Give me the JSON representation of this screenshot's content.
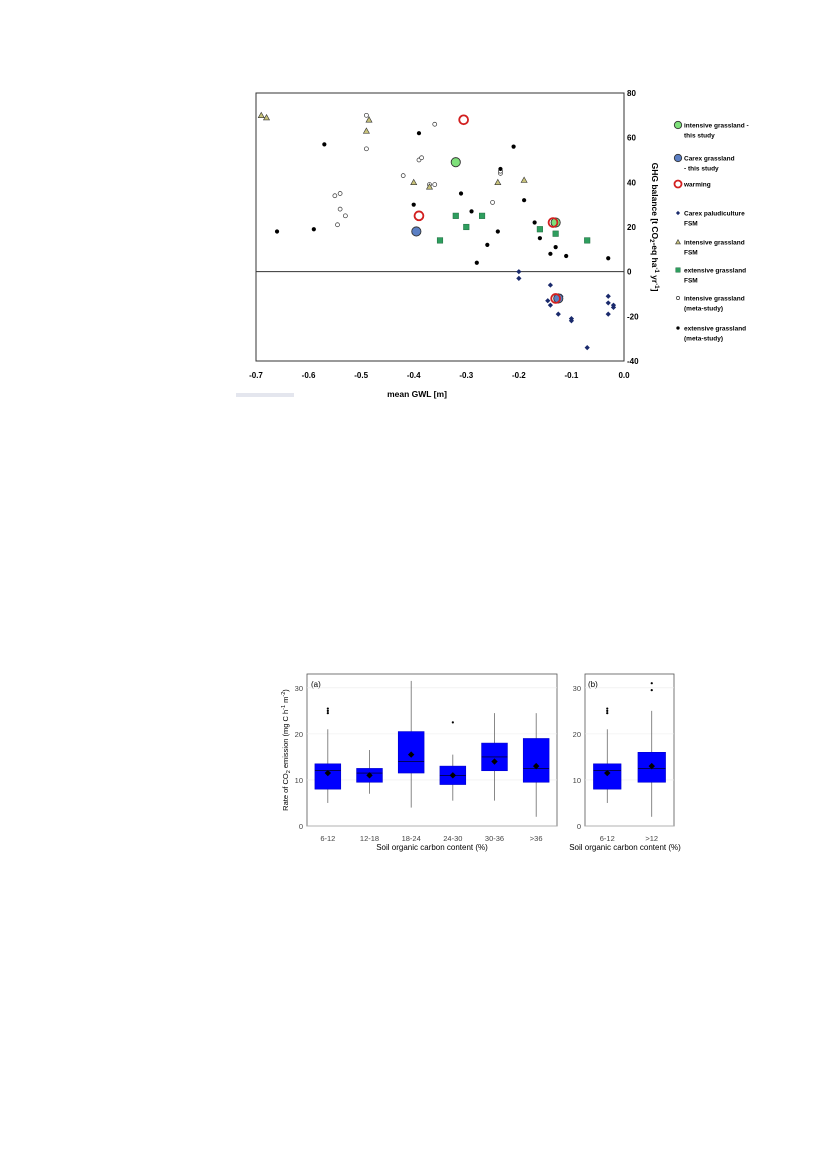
{
  "chart_data": [
    {
      "type": "scatter",
      "title": "",
      "xlabel": "mean GWL [m]",
      "ylabel_parts": [
        "GHG balance [t CO",
        "2",
        "-eq ha",
        "-1",
        " yr",
        "-1",
        "]"
      ],
      "xlim": [
        -0.7,
        0.0
      ],
      "ylim": [
        -40,
        80
      ],
      "xticks": [
        -0.7,
        -0.6,
        -0.5,
        -0.4,
        -0.3,
        -0.2,
        -0.1,
        0.0
      ],
      "xtick_labels": [
        "-0.7",
        "-0.6",
        "-0.5",
        "-0.4",
        "-0.3",
        "-0.2",
        "-0.1",
        "0.0"
      ],
      "yticks": [
        -40,
        -20,
        0,
        20,
        40,
        60,
        80
      ],
      "ytick_labels": [
        "-40",
        "-20",
        "0",
        "20",
        "40",
        "60",
        "80"
      ],
      "zero_line": true,
      "legend_position": "right",
      "series": [
        {
          "name": "intensive grassland - this study",
          "legend_lines": [
            "intensive grassland -",
            "this study"
          ],
          "marker": "circle-large",
          "color": "#7ee07a",
          "stroke": "#333333",
          "points": [
            [
              -0.32,
              49
            ],
            [
              -0.13,
              22
            ]
          ]
        },
        {
          "name": "Carex grassland - this study",
          "legend_lines": [
            "Carex grassland",
            "- this study"
          ],
          "marker": "circle-large",
          "color": "#5b7fc4",
          "stroke": "#333333",
          "points": [
            [
              -0.395,
              18
            ],
            [
              -0.125,
              -12
            ]
          ]
        },
        {
          "name": "warming",
          "legend_lines": [
            "warming"
          ],
          "marker": "ring",
          "color": "#d21f1f",
          "stroke": "#d21f1f",
          "points": [
            [
              -0.305,
              68
            ],
            [
              -0.39,
              25
            ],
            [
              -0.135,
              22
            ],
            [
              -0.13,
              -12
            ]
          ]
        },
        {
          "name": "Carex paludiculture FSM",
          "legend_lines": [
            "Carex paludiculture",
            "FSM"
          ],
          "marker": "diamond",
          "color": "#1a2a6c",
          "stroke": "#1a2a6c",
          "points": [
            [
              -0.2,
              0
            ],
            [
              -0.2,
              -3
            ],
            [
              -0.14,
              -6
            ],
            [
              -0.145,
              -13
            ],
            [
              -0.14,
              -15
            ],
            [
              -0.12,
              -11
            ],
            [
              -0.125,
              -19
            ],
            [
              -0.1,
              -21
            ],
            [
              -0.1,
              -22
            ],
            [
              -0.07,
              -34
            ],
            [
              -0.03,
              -11
            ],
            [
              -0.03,
              -14
            ],
            [
              -0.03,
              -19
            ],
            [
              -0.02,
              -15
            ],
            [
              -0.02,
              -16
            ]
          ]
        },
        {
          "name": "intensive grassland FSM",
          "legend_lines": [
            "intensive grassland",
            "FSM"
          ],
          "marker": "triangle",
          "color": "#c8c27a",
          "stroke": "#333333",
          "points": [
            [
              -0.69,
              70
            ],
            [
              -0.68,
              69
            ],
            [
              -0.49,
              63
            ],
            [
              -0.485,
              68
            ],
            [
              -0.4,
              40
            ],
            [
              -0.37,
              38
            ],
            [
              -0.24,
              40
            ],
            [
              -0.19,
              41
            ]
          ]
        },
        {
          "name": "extensive grassland FSM",
          "legend_lines": [
            "extensive grassland",
            "FSM"
          ],
          "marker": "square",
          "color": "#2e9e5e",
          "stroke": "#1d6b3e",
          "points": [
            [
              -0.35,
              14
            ],
            [
              -0.32,
              25
            ],
            [
              -0.3,
              20
            ],
            [
              -0.27,
              25
            ],
            [
              -0.16,
              19
            ],
            [
              -0.13,
              17
            ],
            [
              -0.07,
              14
            ]
          ]
        },
        {
          "name": "intensive grassland (meta-study)",
          "legend_lines": [
            "intensive grassland",
            "(meta-study)"
          ],
          "marker": "circle-open",
          "color": "#ffffff",
          "stroke": "#333333",
          "points": [
            [
              -0.49,
              70
            ],
            [
              -0.49,
              55
            ],
            [
              -0.55,
              34
            ],
            [
              -0.54,
              35
            ],
            [
              -0.54,
              28
            ],
            [
              -0.53,
              25
            ],
            [
              -0.545,
              21
            ],
            [
              -0.42,
              43
            ],
            [
              -0.39,
              50
            ],
            [
              -0.385,
              51
            ],
            [
              -0.37,
              39
            ],
            [
              -0.36,
              39
            ],
            [
              -0.36,
              66
            ],
            [
              -0.25,
              31
            ],
            [
              -0.235,
              44
            ],
            [
              -0.235,
              45
            ]
          ]
        },
        {
          "name": "extensive grassland (meta-study)",
          "legend_lines": [
            "extensive grassland",
            "(meta-study)"
          ],
          "marker": "circle-filled",
          "color": "#000000",
          "stroke": "#000000",
          "points": [
            [
              -0.66,
              18
            ],
            [
              -0.59,
              19
            ],
            [
              -0.57,
              57
            ],
            [
              -0.4,
              30
            ],
            [
              -0.39,
              62
            ],
            [
              -0.31,
              35
            ],
            [
              -0.29,
              27
            ],
            [
              -0.28,
              4
            ],
            [
              -0.26,
              12
            ],
            [
              -0.24,
              18
            ],
            [
              -0.235,
              46
            ],
            [
              -0.21,
              56
            ],
            [
              -0.19,
              32
            ],
            [
              -0.17,
              22
            ],
            [
              -0.16,
              15
            ],
            [
              -0.14,
              8
            ],
            [
              -0.13,
              11
            ],
            [
              -0.11,
              7
            ],
            [
              -0.03,
              6
            ]
          ]
        }
      ]
    },
    {
      "type": "box",
      "title": "",
      "panel_label": "(a)",
      "xlabel": "Soil organic carbon content (%)",
      "ylabel_parts": [
        "Rate of CO",
        "2",
        " emission (mg C h",
        "-1",
        " m",
        "-2",
        ")"
      ],
      "ylim": [
        0,
        33
      ],
      "yticks": [
        0,
        10,
        20,
        30
      ],
      "ytick_labels": [
        "0",
        "10",
        "20",
        "30"
      ],
      "categories": [
        "6-12",
        "12-18",
        "18-24",
        "24-30",
        "30-36",
        ">36"
      ],
      "box_color": "#0000ff",
      "boxes": [
        {
          "q1": 8,
          "median": 12,
          "q3": 13.5,
          "whisker_low": 5,
          "whisker_high": 21,
          "mean": 11.5,
          "outliers": [
            24.5,
            25,
            25.5
          ]
        },
        {
          "q1": 9.5,
          "median": 11.5,
          "q3": 12.5,
          "whisker_low": 7,
          "whisker_high": 16.5,
          "mean": 11,
          "outliers": []
        },
        {
          "q1": 11.5,
          "median": 14,
          "q3": 20.5,
          "whisker_low": 4,
          "whisker_high": 31.5,
          "mean": 15.5,
          "outliers": []
        },
        {
          "q1": 9,
          "median": 11,
          "q3": 13,
          "whisker_low": 5.5,
          "whisker_high": 15.5,
          "mean": 11,
          "outliers": [
            22.5
          ]
        },
        {
          "q1": 12,
          "median": 15,
          "q3": 18,
          "whisker_low": 5.5,
          "whisker_high": 24.5,
          "mean": 14,
          "outliers": []
        },
        {
          "q1": 9.5,
          "median": 12.5,
          "q3": 19,
          "whisker_low": 2,
          "whisker_high": 24.5,
          "mean": 13,
          "outliers": []
        }
      ]
    },
    {
      "type": "box",
      "title": "",
      "panel_label": "(b)",
      "xlabel": "Soil organic carbon content (%)",
      "ylim": [
        0,
        33
      ],
      "yticks": [
        0,
        10,
        20,
        30
      ],
      "ytick_labels": [
        "0",
        "10",
        "20",
        "30"
      ],
      "categories": [
        "6-12",
        ">12"
      ],
      "box_color": "#0000ff",
      "boxes": [
        {
          "q1": 8,
          "median": 12,
          "q3": 13.5,
          "whisker_low": 5,
          "whisker_high": 21,
          "mean": 11.5,
          "outliers": [
            24.5,
            25,
            25.5
          ]
        },
        {
          "q1": 9.5,
          "median": 12.5,
          "q3": 16,
          "whisker_low": 2,
          "whisker_high": 25,
          "mean": 13,
          "outliers": [
            29.5,
            31
          ]
        }
      ]
    }
  ]
}
